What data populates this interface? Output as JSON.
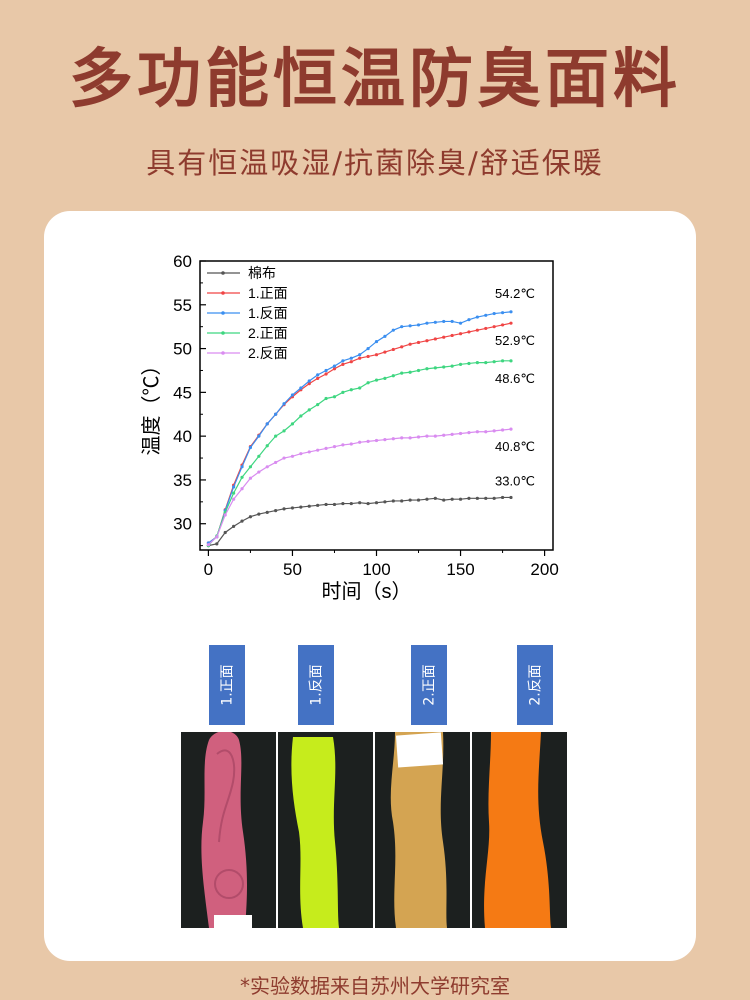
{
  "header": {
    "title": "多功能恒温防臭面料",
    "subtitle": "具有恒温吸湿/抗菌除臭/舒适保暖"
  },
  "colors": {
    "background": "#e8c8a8",
    "title": "#8e3b2e",
    "tag": "#4472c4"
  },
  "chart_data": {
    "type": "line",
    "xlabel": "时间（s）",
    "ylabel": "温度（℃）",
    "xlim": [
      -5,
      205
    ],
    "ylim": [
      27,
      60
    ],
    "xticks": [
      0,
      50,
      100,
      150,
      200
    ],
    "yticks": [
      30,
      35,
      40,
      45,
      50,
      55,
      60
    ],
    "grid": false,
    "legend": "top-left",
    "x": [
      0,
      5,
      10,
      15,
      20,
      25,
      30,
      35,
      40,
      45,
      50,
      55,
      60,
      65,
      70,
      75,
      80,
      85,
      90,
      95,
      100,
      105,
      110,
      115,
      120,
      125,
      130,
      135,
      140,
      145,
      150,
      155,
      160,
      165,
      170,
      175,
      180
    ],
    "series": [
      {
        "name": "棉布",
        "color": "#555555",
        "end_label": "33.0℃",
        "values": [
          27.5,
          27.7,
          29,
          29.7,
          30.3,
          30.8,
          31.1,
          31.3,
          31.5,
          31.7,
          31.8,
          31.9,
          32,
          32.1,
          32.2,
          32.2,
          32.3,
          32.3,
          32.4,
          32.3,
          32.4,
          32.5,
          32.6,
          32.6,
          32.7,
          32.7,
          32.8,
          32.9,
          32.7,
          32.8,
          32.8,
          32.9,
          32.9,
          32.9,
          32.9,
          33.0,
          33.0
        ]
      },
      {
        "name": "1.正面",
        "color": "#f04545",
        "end_label": "52.9℃",
        "values": [
          27.8,
          28.5,
          31.6,
          34.4,
          36.7,
          38.8,
          40.1,
          41.4,
          42.5,
          43.6,
          44.5,
          45.3,
          46,
          46.6,
          47.1,
          47.7,
          48.2,
          48.5,
          48.9,
          49.1,
          49.3,
          49.6,
          49.9,
          50.2,
          50.5,
          50.7,
          50.9,
          51.1,
          51.3,
          51.5,
          51.7,
          51.9,
          52.1,
          52.3,
          52.5,
          52.7,
          52.9
        ]
      },
      {
        "name": "1.反面",
        "color": "#3b8ff0",
        "end_label": "54.2℃",
        "values": [
          27.8,
          28.5,
          31.5,
          34.2,
          36.5,
          38.7,
          40,
          41.4,
          42.5,
          43.7,
          44.7,
          45.5,
          46.3,
          47,
          47.5,
          48,
          48.6,
          48.9,
          49.3,
          50,
          50.8,
          51.4,
          52.1,
          52.5,
          52.6,
          52.7,
          52.9,
          53,
          53.1,
          53.1,
          52.9,
          53.3,
          53.6,
          53.8,
          54,
          54.1,
          54.2
        ]
      },
      {
        "name": "2.正面",
        "color": "#3ed680",
        "end_label": "48.6℃",
        "values": [
          27.5,
          28.6,
          31.3,
          33.5,
          35.3,
          36.5,
          37.7,
          38.9,
          40,
          40.6,
          41.4,
          42.3,
          43,
          43.6,
          44.3,
          44.5,
          45,
          45.3,
          45.5,
          46.1,
          46.4,
          46.6,
          46.9,
          47.2,
          47.3,
          47.5,
          47.7,
          47.8,
          47.9,
          48,
          48.2,
          48.3,
          48.4,
          48.4,
          48.5,
          48.6,
          48.6
        ]
      },
      {
        "name": "2.反面",
        "color": "#d98cf0",
        "end_label": "40.8℃",
        "values": [
          27.6,
          28.5,
          31,
          32.8,
          34,
          35.2,
          35.9,
          36.5,
          37,
          37.5,
          37.7,
          38,
          38.2,
          38.4,
          38.6,
          38.8,
          39,
          39.1,
          39.3,
          39.4,
          39.5,
          39.6,
          39.7,
          39.8,
          39.8,
          39.9,
          40,
          40,
          40.1,
          40.2,
          40.3,
          40.4,
          40.5,
          40.5,
          40.6,
          40.7,
          40.8
        ]
      }
    ]
  },
  "samples": [
    {
      "label": "1.正面",
      "color": "#d0607e"
    },
    {
      "label": "1.反面",
      "color": "#c6ec1c"
    },
    {
      "label": "2.正面",
      "color": "#d4a452"
    },
    {
      "label": "2.反面",
      "color": "#f57a14"
    }
  ],
  "footer": "*实验数据来自苏州大学研究室"
}
